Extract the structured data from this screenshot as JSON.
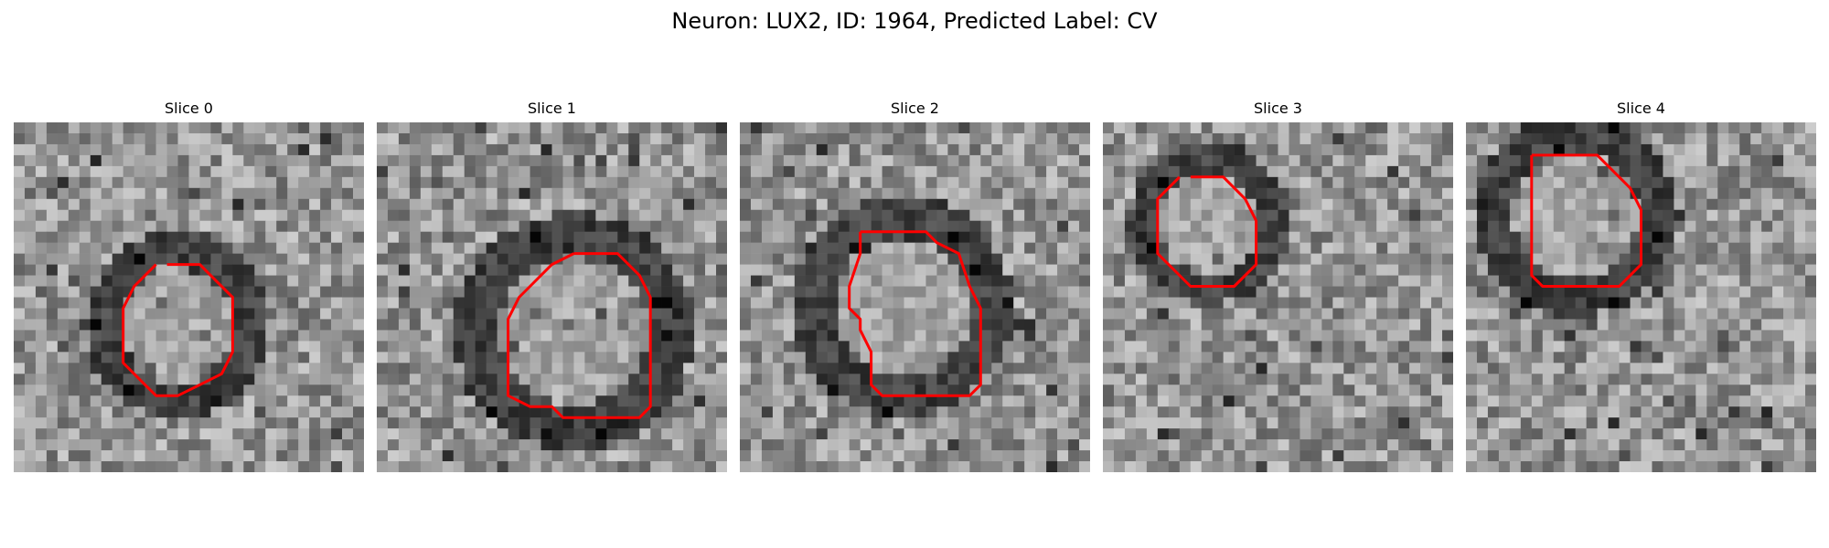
{
  "figure": {
    "title": "Neuron: LUX2, ID: 1964, Predicted Label: CV"
  },
  "colors": {
    "contour": "#ff0000"
  },
  "panels": [
    {
      "title": "Slice 0",
      "contour": [
        [
          14,
          13
        ],
        [
          15,
          13
        ],
        [
          17,
          13
        ],
        [
          18,
          14
        ],
        [
          20,
          16
        ],
        [
          20,
          21
        ],
        [
          19,
          23
        ],
        [
          17,
          24
        ],
        [
          15,
          25
        ],
        [
          13,
          25
        ],
        [
          12,
          24
        ],
        [
          10,
          22
        ],
        [
          10,
          17
        ],
        [
          11,
          15
        ],
        [
          13,
          13
        ]
      ]
    },
    {
      "title": "Slice 1",
      "contour": [
        [
          18,
          12
        ],
        [
          22,
          12
        ],
        [
          24,
          14
        ],
        [
          25,
          16
        ],
        [
          25,
          26
        ],
        [
          24,
          27
        ],
        [
          21,
          27
        ],
        [
          17,
          27
        ],
        [
          16,
          26
        ],
        [
          14,
          26
        ],
        [
          12,
          25
        ],
        [
          12,
          18
        ],
        [
          13,
          16
        ],
        [
          14,
          15
        ],
        [
          15,
          14
        ],
        [
          16,
          13
        ],
        [
          18,
          12
        ]
      ]
    },
    {
      "title": "Slice 2",
      "contour": [
        [
          11,
          10
        ],
        [
          12,
          10
        ],
        [
          17,
          10
        ],
        [
          18,
          11
        ],
        [
          20,
          12
        ],
        [
          21,
          15
        ],
        [
          22,
          17
        ],
        [
          22,
          24
        ],
        [
          21,
          25
        ],
        [
          17,
          25
        ],
        [
          13,
          25
        ],
        [
          12,
          24
        ],
        [
          12,
          21
        ],
        [
          11,
          19
        ],
        [
          11,
          18
        ],
        [
          10,
          17
        ],
        [
          10,
          15
        ],
        [
          11,
          12
        ],
        [
          11,
          10
        ]
      ]
    },
    {
      "title": "Slice 3",
      "contour": [
        [
          8,
          5
        ],
        [
          11,
          5
        ],
        [
          13,
          7
        ],
        [
          14,
          9
        ],
        [
          14,
          13
        ],
        [
          12,
          15
        ],
        [
          8,
          15
        ],
        [
          5,
          12
        ],
        [
          5,
          7
        ],
        [
          7,
          5
        ]
      ]
    },
    {
      "title": "Slice 4",
      "contour": [
        [
          6,
          3
        ],
        [
          12,
          3
        ],
        [
          15,
          6
        ],
        [
          16,
          8
        ],
        [
          16,
          13
        ],
        [
          14,
          15
        ],
        [
          7,
          15
        ],
        [
          6,
          14
        ],
        [
          6,
          9
        ],
        [
          6,
          4
        ],
        [
          6,
          3
        ]
      ]
    }
  ]
}
